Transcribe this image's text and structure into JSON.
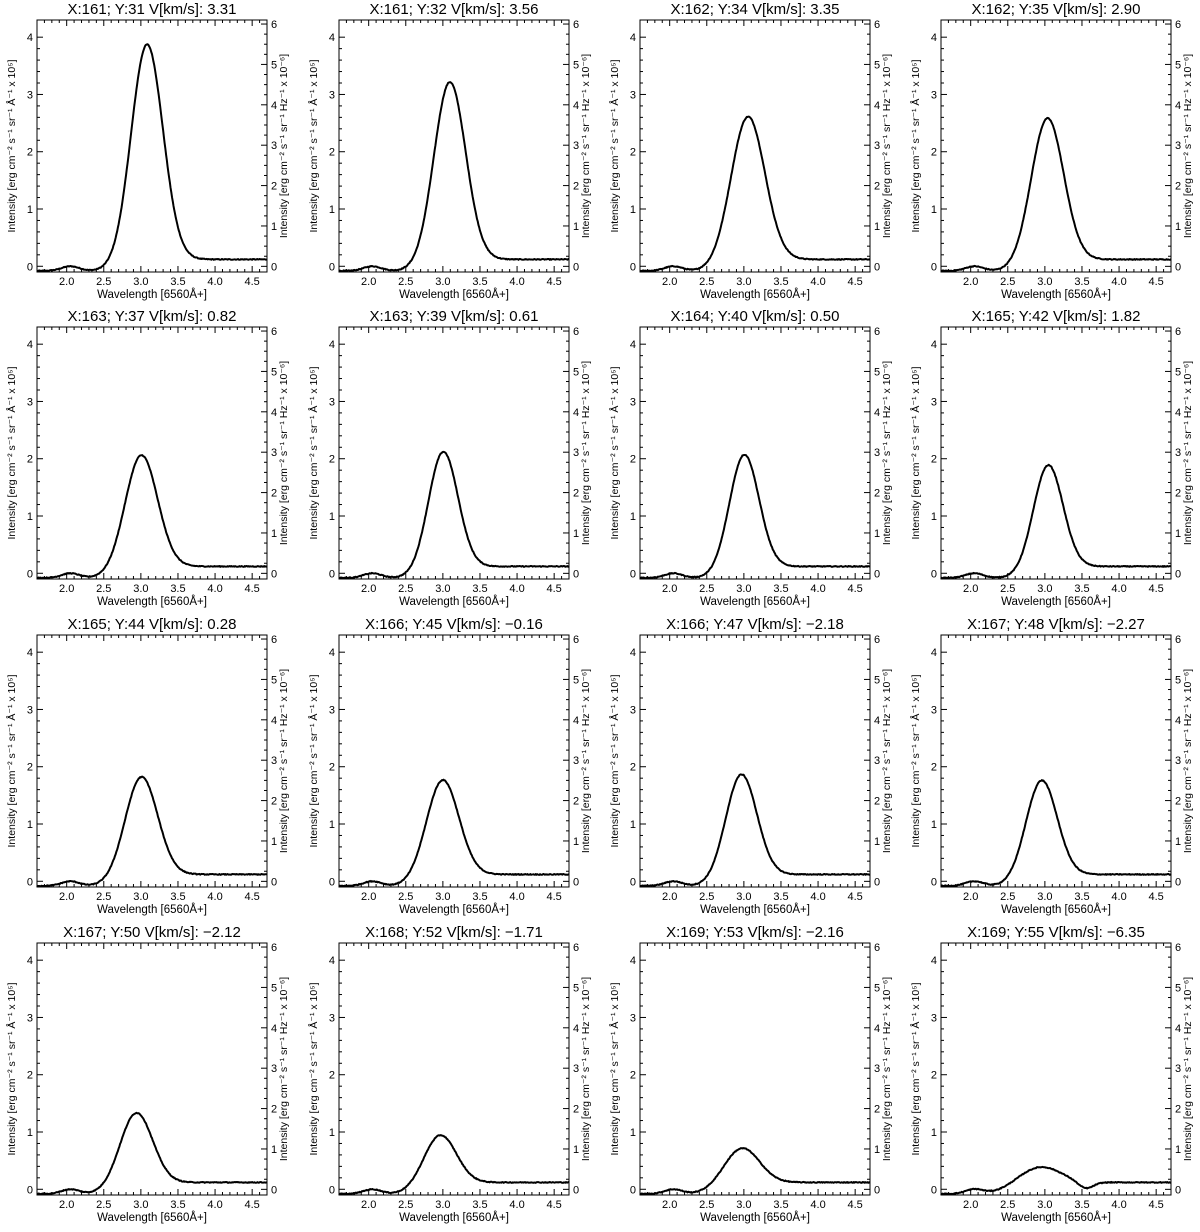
{
  "chart_data": {
    "type": "line",
    "layout": "4x4 grid of small multiples",
    "xlabel": "Wavelength [6560Å+]",
    "ylabel_left": "Intensity [erg cm⁻² s⁻¹ sr⁻¹ Å⁻¹ x 10⁵]",
    "ylabel_right": "Intensity [erg cm⁻² s⁻¹ sr⁻¹ Hz⁻¹ x 10⁻⁶]",
    "xlim": [
      1.6,
      4.7
    ],
    "ylim_left": [
      -0.1,
      4.3
    ],
    "ylim_right": [
      -0.14,
      6.1
    ],
    "xticks": [
      "2.0",
      "2.5",
      "3.0",
      "3.5",
      "4.0",
      "4.5"
    ],
    "yticks_left": [
      "0",
      "1",
      "2",
      "3",
      "4"
    ],
    "yticks_right": [
      "0",
      "1",
      "2",
      "3",
      "4",
      "5",
      "6"
    ],
    "grid": false,
    "panels": [
      {
        "title": "X:161;  Y:31  V[km/s]:  3.31",
        "peak": 3.82,
        "center": 3.08,
        "sigma": 0.215
      },
      {
        "title": "X:161;  Y:32  V[km/s]:  3.56",
        "peak": 3.16,
        "center": 3.09,
        "sigma": 0.215
      },
      {
        "title": "X:162;  Y:34  V[km/s]:  3.35",
        "peak": 2.57,
        "center": 3.05,
        "sigma": 0.23
      },
      {
        "title": "X:162;  Y:35  V[km/s]:  2.90",
        "peak": 2.55,
        "center": 3.03,
        "sigma": 0.22
      },
      {
        "title": "X:163;  Y:37  V[km/s]:  0.82",
        "peak": 2.04,
        "center": 3.0,
        "sigma": 0.22
      },
      {
        "title": "X:163;  Y:39  V[km/s]:  0.61",
        "peak": 2.1,
        "center": 3.0,
        "sigma": 0.2
      },
      {
        "title": "X:164;  Y:40  V[km/s]:  0.50",
        "peak": 2.05,
        "center": 3.0,
        "sigma": 0.2
      },
      {
        "title": "X:165;  Y:42  V[km/s]:  1.82",
        "peak": 1.85,
        "center": 3.04,
        "sigma": 0.2
      },
      {
        "title": "X:165;  Y:44  V[km/s]:  0.28",
        "peak": 1.8,
        "center": 3.0,
        "sigma": 0.22
      },
      {
        "title": "X:166;  Y:45  V[km/s]: −0.16",
        "peak": 1.75,
        "center": 2.99,
        "sigma": 0.22
      },
      {
        "title": "X:166;  Y:47  V[km/s]: −2.18",
        "peak": 1.86,
        "center": 2.96,
        "sigma": 0.21
      },
      {
        "title": "X:167;  Y:48  V[km/s]: −2.27",
        "peak": 1.76,
        "center": 2.95,
        "sigma": 0.21
      },
      {
        "title": "X:167;  Y:50  V[km/s]: −2.12",
        "peak": 1.34,
        "center": 2.93,
        "sigma": 0.22
      },
      {
        "title": "X:168;  Y:52  V[km/s]: −1.71",
        "peak": 0.94,
        "center": 2.95,
        "sigma": 0.22
      },
      {
        "title": "X:169;  Y:53  V[km/s]: −2.16",
        "peak": 0.71,
        "center": 2.95,
        "sigma": 0.24
      },
      {
        "title": "X:169;  Y:55  V[km/s]: −6.35",
        "peak": 0.4,
        "center": 2.88,
        "sigma": 0.28
      }
    ]
  }
}
